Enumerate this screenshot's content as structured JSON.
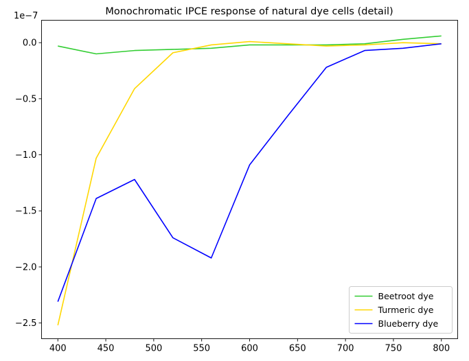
{
  "chart_data": {
    "type": "line",
    "title": "Monochromatic IPCE response of natural dye cells (detail)",
    "xlabel": "",
    "ylabel": "",
    "y_offset_label": "1e−7",
    "x": [
      400,
      440,
      480,
      520,
      560,
      600,
      640,
      680,
      720,
      760,
      800
    ],
    "xlim": [
      383,
      817
    ],
    "ylim": [
      -2.64e-07,
      2e-08
    ],
    "x_ticks": [
      400,
      450,
      500,
      550,
      600,
      650,
      700,
      750,
      800
    ],
    "y_ticks": [
      {
        "value": 0.0,
        "label": "0.0"
      },
      {
        "value": -5e-08,
        "label": "−0.5"
      },
      {
        "value": -1e-07,
        "label": "−1.0"
      },
      {
        "value": -1.5e-07,
        "label": "−1.5"
      },
      {
        "value": -2e-07,
        "label": "−2.0"
      },
      {
        "value": -2.5e-07,
        "label": "−2.5"
      }
    ],
    "grid": false,
    "legend_position": "lower-right",
    "series": [
      {
        "name": "Beetroot dye",
        "color": "#32cd32",
        "values": [
          -3e-09,
          -1e-08,
          -7e-09,
          -6e-09,
          -5e-09,
          -2e-09,
          -2e-09,
          -2e-09,
          -1e-09,
          3e-09,
          6e-09
        ]
      },
      {
        "name": "Turmeric dye",
        "color": "#ffd700",
        "values": [
          -2.52e-07,
          -1.03e-07,
          -4.1e-08,
          -9e-09,
          -2e-09,
          1e-09,
          -1e-09,
          -3e-09,
          -2e-09,
          0.0,
          -1e-09
        ]
      },
      {
        "name": "Blueberry dye",
        "color": "#0000ff",
        "values": [
          -2.31e-07,
          -1.39e-07,
          -1.22e-07,
          -1.74e-07,
          -1.92e-07,
          -1.09e-07,
          -6.5e-08,
          -2.2e-08,
          -7e-09,
          -5e-09,
          -1e-09
        ]
      }
    ]
  }
}
